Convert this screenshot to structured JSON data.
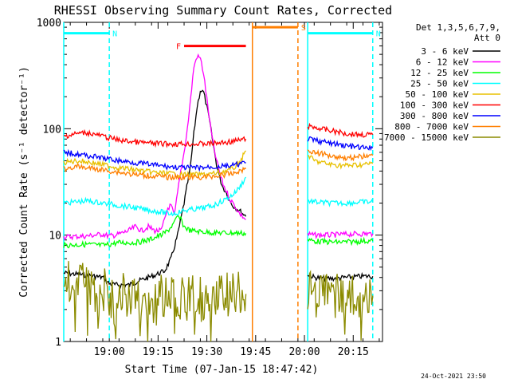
{
  "chart_data": {
    "type": "line",
    "title": "RHESSI Observing Summary Count Rates, Corrected",
    "xlabel": "Start Time (07-Jan-15 18:47:42)",
    "ylabel": "Corrected Count Rate (s⁻¹ detector⁻¹)",
    "yscale": "log",
    "ylim": [
      1,
      1000
    ],
    "xlim_minutes": [
      -2,
      96
    ],
    "x_ticks": [
      {
        "t": 12,
        "label": "19:00"
      },
      {
        "t": 27,
        "label": "19:15"
      },
      {
        "t": 42,
        "label": "19:30"
      },
      {
        "t": 57,
        "label": "19:45"
      },
      {
        "t": 72,
        "label": "20:00"
      },
      {
        "t": 87,
        "label": "20:15"
      }
    ],
    "y_ticks": [
      {
        "v": 1,
        "label": "1"
      },
      {
        "v": 10,
        "label": "10"
      },
      {
        "v": 100,
        "label": "100"
      },
      {
        "v": 1000,
        "label": "1000"
      }
    ],
    "legend_header": [
      "Det 1,3,5,6,7,9,",
      "Att 0"
    ],
    "legend_position": "right",
    "date_stamp": "24-Oct-2021 23:50",
    "grid": false,
    "series": [
      {
        "name": "3 - 6 keV",
        "color": "#000000",
        "segments": [
          [
            [
              -2,
              4.4
            ],
            [
              5,
              4.2
            ],
            [
              10,
              4.0
            ],
            [
              12,
              3.5
            ],
            [
              14,
              3.4
            ],
            [
              18,
              3.4
            ],
            [
              22,
              3.8
            ],
            [
              26,
              4.2
            ],
            [
              29,
              4.6
            ],
            [
              31,
              6
            ],
            [
              33,
              10
            ],
            [
              35,
              20
            ],
            [
              37,
              45
            ],
            [
              38,
              90
            ],
            [
              39,
              160
            ],
            [
              40,
              230
            ],
            [
              41,
              220
            ],
            [
              42,
              160
            ],
            [
              43,
              110
            ],
            [
              44,
              70
            ],
            [
              45,
              46
            ],
            [
              46,
              34
            ],
            [
              47,
              28
            ],
            [
              48,
              25
            ],
            [
              49,
              21
            ],
            [
              50,
              19
            ],
            [
              51,
              18
            ],
            [
              52,
              17
            ],
            [
              53,
              16
            ],
            [
              54,
              15
            ]
          ],
          [
            [
              73,
              4.3
            ],
            [
              75,
              4.0
            ],
            [
              80,
              3.9
            ],
            [
              85,
              4.0
            ],
            [
              90,
              4.1
            ],
            [
              93,
              4.1
            ]
          ]
        ]
      },
      {
        "name": "6 - 12 keV",
        "color": "#ff00ff",
        "segments": [
          [
            [
              -2,
              9.6
            ],
            [
              5,
              9.8
            ],
            [
              10,
              10.2
            ],
            [
              12,
              9.8
            ],
            [
              14,
              10
            ],
            [
              18,
              11
            ],
            [
              20,
              12
            ],
            [
              22,
              11
            ],
            [
              24,
              12
            ],
            [
              26,
              11
            ],
            [
              28,
              11
            ],
            [
              29,
              14
            ],
            [
              30,
              18
            ],
            [
              31,
              19
            ],
            [
              32,
              15
            ],
            [
              33,
              25
            ],
            [
              34,
              40
            ],
            [
              35,
              60
            ],
            [
              36,
              100
            ],
            [
              37,
              190
            ],
            [
              38,
              380
            ],
            [
              39,
              480
            ],
            [
              40,
              460
            ],
            [
              41,
              330
            ],
            [
              42,
              190
            ],
            [
              43,
              110
            ],
            [
              44,
              70
            ],
            [
              45,
              50
            ],
            [
              46,
              38
            ],
            [
              47,
              30
            ],
            [
              48,
              26
            ],
            [
              49,
              22
            ],
            [
              50,
              20
            ],
            [
              51,
              18
            ],
            [
              52,
              16
            ],
            [
              53,
              15
            ],
            [
              54,
              14
            ]
          ],
          [
            [
              73,
              10.2
            ],
            [
              75,
              10
            ],
            [
              80,
              10
            ],
            [
              85,
              10.2
            ],
            [
              90,
              10.3
            ],
            [
              93,
              10.3
            ]
          ]
        ]
      },
      {
        "name": "12 - 25 keV",
        "color": "#00ff00",
        "segments": [
          [
            [
              -2,
              8.0
            ],
            [
              5,
              8.2
            ],
            [
              10,
              8.0
            ],
            [
              15,
              8.5
            ],
            [
              20,
              8.5
            ],
            [
              24,
              9
            ],
            [
              26,
              9.5
            ],
            [
              28,
              10
            ],
            [
              30,
              11
            ],
            [
              32,
              13
            ],
            [
              33,
              15
            ],
            [
              34,
              14
            ],
            [
              35,
              12
            ],
            [
              37,
              11
            ],
            [
              40,
              10.8
            ],
            [
              45,
              10.5
            ],
            [
              50,
              10.5
            ],
            [
              54,
              10.4
            ]
          ],
          [
            [
              73,
              9.0
            ],
            [
              75,
              8.8
            ],
            [
              80,
              8.6
            ],
            [
              85,
              8.6
            ],
            [
              90,
              8.8
            ],
            [
              93,
              8.8
            ]
          ]
        ]
      },
      {
        "name": "25 - 50 keV",
        "color": "#00ffff",
        "segments": [
          [
            [
              -2,
              20
            ],
            [
              5,
              21
            ],
            [
              10,
              20
            ],
            [
              15,
              19
            ],
            [
              20,
              18
            ],
            [
              25,
              17
            ],
            [
              28,
              16.5
            ],
            [
              30,
              16
            ],
            [
              32,
              16
            ],
            [
              35,
              17
            ],
            [
              38,
              17.5
            ],
            [
              41,
              18
            ],
            [
              44,
              19
            ],
            [
              47,
              21
            ],
            [
              50,
              24
            ],
            [
              52,
              28
            ],
            [
              54,
              35
            ]
          ],
          [
            [
              73,
              21
            ],
            [
              75,
              20.5
            ],
            [
              80,
              20
            ],
            [
              85,
              20
            ],
            [
              90,
              20.5
            ],
            [
              93,
              20.5
            ]
          ]
        ]
      },
      {
        "name": "50 - 100 keV",
        "color": "#e8c000",
        "segments": [
          [
            [
              -2,
              48
            ],
            [
              2,
              50
            ],
            [
              5,
              49
            ],
            [
              10,
              46
            ],
            [
              15,
              43
            ],
            [
              20,
              41
            ],
            [
              25,
              39
            ],
            [
              30,
              38
            ],
            [
              35,
              37
            ],
            [
              40,
              37
            ],
            [
              45,
              38
            ],
            [
              50,
              42
            ],
            [
              52,
              48
            ],
            [
              54,
              62
            ]
          ],
          [
            [
              73,
              57
            ],
            [
              75,
              50
            ],
            [
              80,
              46
            ],
            [
              85,
              45
            ],
            [
              90,
              46
            ],
            [
              93,
              47
            ]
          ]
        ]
      },
      {
        "name": "100 - 300 keV",
        "color": "#ff0000",
        "segments": [
          [
            [
              -2,
              85
            ],
            [
              2,
              90
            ],
            [
              5,
              92
            ],
            [
              8,
              88
            ],
            [
              12,
              82
            ],
            [
              15,
              78
            ],
            [
              20,
              75
            ],
            [
              25,
              73
            ],
            [
              30,
              72
            ],
            [
              35,
              72
            ],
            [
              40,
              72
            ],
            [
              45,
              73
            ],
            [
              50,
              76
            ],
            [
              54,
              80
            ]
          ],
          [
            [
              73,
              105
            ],
            [
              75,
              103
            ],
            [
              80,
              96
            ],
            [
              85,
              90
            ],
            [
              90,
              88
            ],
            [
              93,
              88
            ]
          ]
        ]
      },
      {
        "name": "300 - 800 keV",
        "color": "#0000ff",
        "segments": [
          [
            [
              -2,
              60
            ],
            [
              2,
              58
            ],
            [
              5,
              56
            ],
            [
              10,
              53
            ],
            [
              15,
              50
            ],
            [
              20,
              48
            ],
            [
              25,
              46
            ],
            [
              30,
              44
            ],
            [
              35,
              43
            ],
            [
              40,
              43
            ],
            [
              45,
              44
            ],
            [
              50,
              45
            ],
            [
              54,
              48
            ]
          ],
          [
            [
              73,
              80
            ],
            [
              75,
              78
            ],
            [
              80,
              73
            ],
            [
              85,
              69
            ],
            [
              90,
              66
            ],
            [
              93,
              66
            ]
          ]
        ]
      },
      {
        "name": "800 - 7000 keV",
        "color": "#ff7f00",
        "segments": [
          [
            [
              -2,
              42
            ],
            [
              2,
              44
            ],
            [
              5,
              43
            ],
            [
              10,
              41
            ],
            [
              15,
              39
            ],
            [
              20,
              37
            ],
            [
              25,
              36
            ],
            [
              30,
              35
            ],
            [
              35,
              35
            ],
            [
              40,
              35
            ],
            [
              45,
              36
            ],
            [
              50,
              38
            ],
            [
              54,
              42
            ]
          ],
          [
            [
              73,
              63
            ],
            [
              75,
              60
            ],
            [
              80,
              56
            ],
            [
              85,
              53
            ],
            [
              90,
              55
            ],
            [
              93,
              56
            ]
          ]
        ]
      },
      {
        "name": "7000 - 15000 keV",
        "color": "#8b8b00",
        "segments": [
          [
            [
              -2,
              3.6
            ],
            [
              5,
              3.6
            ],
            [
              10,
              3.5
            ],
            [
              12,
              2.6
            ],
            [
              16,
              2.8
            ],
            [
              20,
              2.7
            ],
            [
              25,
              2.6
            ],
            [
              30,
              2.6
            ],
            [
              35,
              2.6
            ],
            [
              40,
              2.5
            ],
            [
              45,
              2.7
            ],
            [
              50,
              2.7
            ],
            [
              54,
              2.8
            ]
          ],
          [
            [
              73,
              3.0
            ],
            [
              75,
              2.7
            ],
            [
              80,
              2.7
            ],
            [
              85,
              2.7
            ],
            [
              90,
              2.7
            ],
            [
              93,
              2.7
            ]
          ]
        ]
      }
    ],
    "annotations": [
      {
        "label": "N",
        "color": "#00ffff",
        "t_start": -2,
        "t_end": 12,
        "value": 790
      },
      {
        "label": "N",
        "color": "#00ffff",
        "t_start": 73,
        "t_end": 93,
        "value": 790
      },
      {
        "label": "S",
        "color": "#ff7f00",
        "t_start": 56,
        "t_end": 70,
        "value": 900
      },
      {
        "label": "F",
        "color": "#ff0000",
        "t_start": 35,
        "t_end": 54,
        "value": 600
      }
    ],
    "markers": [
      {
        "t": -2,
        "color": "#00ffff",
        "style": "solid"
      },
      {
        "t": 12,
        "color": "#00ffff",
        "style": "dashed"
      },
      {
        "t": 56,
        "color": "#ff7f00",
        "style": "solid"
      },
      {
        "t": 70,
        "color": "#ff7f00",
        "style": "dashed"
      },
      {
        "t": 73,
        "color": "#00ffff",
        "style": "solid"
      },
      {
        "t": 93,
        "color": "#00ffff",
        "style": "dashed"
      }
    ]
  }
}
